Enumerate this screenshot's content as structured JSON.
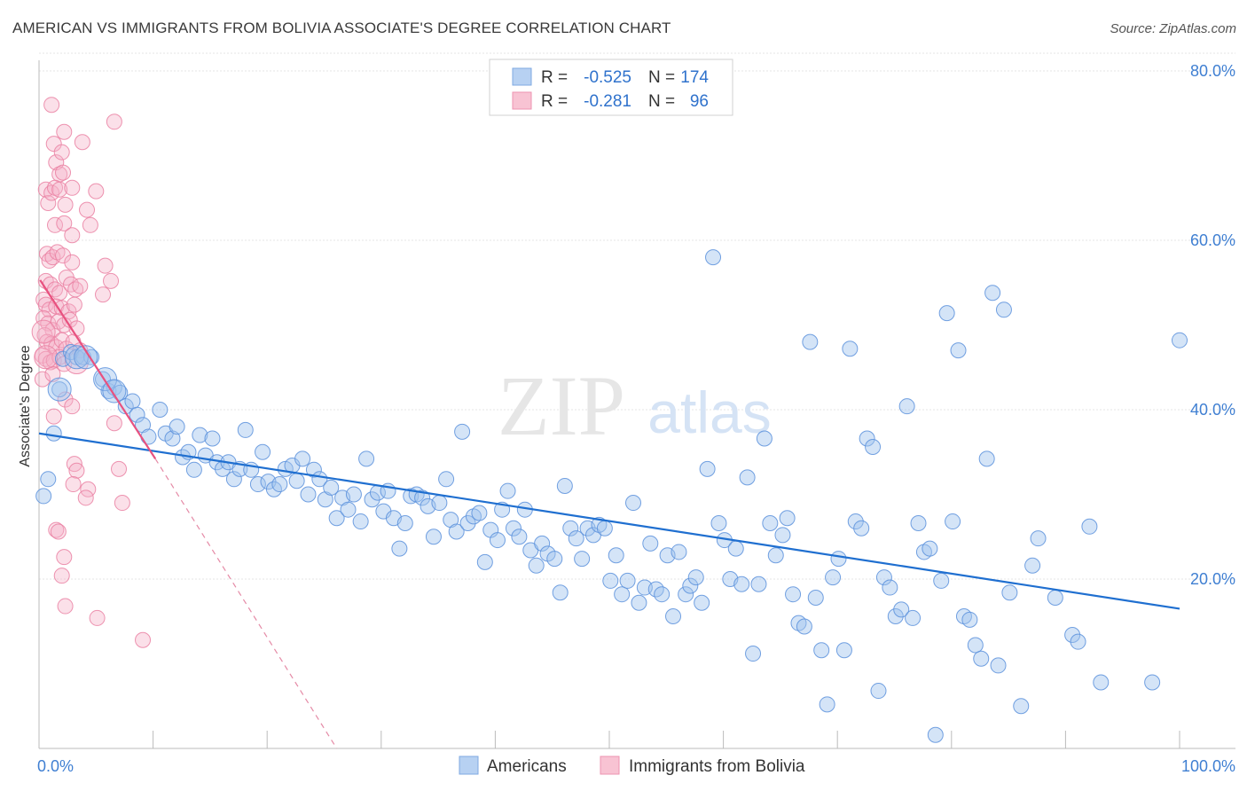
{
  "title": "AMERICAN VS IMMIGRANTS FROM BOLIVIA ASSOCIATE'S DEGREE CORRELATION CHART",
  "source": "Source: ZipAtlas.com",
  "watermark": {
    "zip": "ZIP",
    "atlas": "atlas"
  },
  "colors": {
    "blue": "#1f6fd0",
    "blue_fill": "#a9c8ef",
    "blue_stroke": "#6fa0e0",
    "pink": "#e8517f",
    "pink_fill": "#f6b4c8",
    "pink_stroke": "#ec8aa8",
    "tick_label": "#3f7fd2",
    "grid": "#e4e4e4"
  },
  "legend": {
    "rows": [
      {
        "r_label": "R =",
        "r_value": "-0.525",
        "n_label": "N =",
        "n_value": "174"
      },
      {
        "r_label": "R =",
        "r_value": "-0.281",
        "n_label": "N =",
        "n_value": "96"
      }
    ]
  },
  "chart_data": {
    "type": "scatter",
    "title": "AMERICAN VS IMMIGRANTS FROM BOLIVIA ASSOCIATE'S DEGREE CORRELATION CHART",
    "xlabel": "",
    "ylabel": "Associate's Degree",
    "xlim": [
      0,
      100
    ],
    "ylim": [
      0,
      82
    ],
    "x_tick_labels": [
      "0.0%",
      "100.0%"
    ],
    "y_ticks": [
      20,
      40,
      60,
      80
    ],
    "y_tick_labels": [
      "20.0%",
      "40.0%",
      "60.0%",
      "80.0%"
    ],
    "grid": true,
    "legend_position": "top-center",
    "series": [
      {
        "name": "Americans",
        "color": "#1f6fd0",
        "r": -0.525,
        "n": 174,
        "trend": {
          "x": [
            0,
            100
          ],
          "y": [
            37.2,
            16.5
          ],
          "dashed_extension": false
        },
        "points": [
          [
            0.4,
            29.8
          ],
          [
            0.8,
            31.8
          ],
          [
            1.3,
            37.2
          ],
          [
            1.8,
            42.4
          ],
          [
            2.1,
            46.0
          ],
          [
            2.8,
            46.8
          ],
          [
            3.3,
            46.2
          ],
          [
            3.9,
            46.2
          ],
          [
            4.6,
            46.2
          ],
          [
            5.6,
            43.6
          ],
          [
            6.1,
            42.2
          ],
          [
            6.6,
            42.6
          ],
          [
            7.1,
            42.0
          ],
          [
            7.6,
            40.4
          ],
          [
            8.2,
            41.0
          ],
          [
            8.6,
            39.4
          ],
          [
            9.1,
            38.2
          ],
          [
            9.6,
            36.8
          ],
          [
            10.6,
            40.0
          ],
          [
            11.1,
            37.2
          ],
          [
            11.7,
            36.6
          ],
          [
            12.1,
            38.0
          ],
          [
            12.6,
            34.4
          ],
          [
            13.1,
            35.0
          ],
          [
            13.6,
            32.9
          ],
          [
            14.1,
            37.0
          ],
          [
            14.6,
            34.6
          ],
          [
            15.2,
            36.6
          ],
          [
            15.6,
            33.8
          ],
          [
            16.1,
            33.0
          ],
          [
            16.6,
            33.8
          ],
          [
            17.1,
            31.8
          ],
          [
            17.6,
            33.0
          ],
          [
            18.1,
            37.6
          ],
          [
            18.6,
            32.9
          ],
          [
            19.2,
            31.2
          ],
          [
            19.6,
            35.0
          ],
          [
            20.1,
            31.5
          ],
          [
            20.6,
            30.6
          ],
          [
            21.1,
            31.2
          ],
          [
            21.6,
            33.0
          ],
          [
            22.2,
            33.4
          ],
          [
            22.6,
            31.6
          ],
          [
            23.1,
            34.2
          ],
          [
            23.6,
            30.0
          ],
          [
            24.1,
            32.9
          ],
          [
            24.6,
            31.8
          ],
          [
            25.1,
            29.4
          ],
          [
            25.6,
            30.8
          ],
          [
            26.1,
            27.2
          ],
          [
            26.6,
            29.6
          ],
          [
            27.1,
            28.2
          ],
          [
            27.6,
            30.0
          ],
          [
            28.2,
            26.8
          ],
          [
            28.7,
            34.2
          ],
          [
            29.2,
            29.4
          ],
          [
            29.7,
            30.2
          ],
          [
            30.2,
            28.0
          ],
          [
            30.6,
            30.4
          ],
          [
            31.1,
            27.2
          ],
          [
            31.6,
            23.6
          ],
          [
            32.1,
            26.6
          ],
          [
            32.6,
            29.8
          ],
          [
            33.1,
            30.0
          ],
          [
            33.6,
            29.6
          ],
          [
            34.1,
            28.6
          ],
          [
            34.6,
            25.0
          ],
          [
            35.1,
            29.0
          ],
          [
            35.7,
            31.8
          ],
          [
            36.1,
            27.0
          ],
          [
            36.6,
            25.6
          ],
          [
            37.1,
            37.4
          ],
          [
            37.6,
            26.6
          ],
          [
            38.1,
            27.4
          ],
          [
            38.6,
            27.8
          ],
          [
            39.1,
            22.0
          ],
          [
            39.6,
            25.8
          ],
          [
            40.2,
            24.6
          ],
          [
            40.6,
            28.2
          ],
          [
            41.1,
            30.4
          ],
          [
            41.6,
            26.0
          ],
          [
            42.1,
            25.0
          ],
          [
            42.6,
            28.2
          ],
          [
            43.1,
            23.4
          ],
          [
            43.6,
            21.6
          ],
          [
            44.1,
            24.2
          ],
          [
            44.6,
            23.0
          ],
          [
            45.2,
            22.4
          ],
          [
            45.7,
            18.4
          ],
          [
            46.1,
            31.0
          ],
          [
            46.6,
            26.0
          ],
          [
            47.1,
            24.8
          ],
          [
            47.6,
            22.4
          ],
          [
            48.1,
            26.0
          ],
          [
            48.6,
            25.2
          ],
          [
            49.1,
            26.4
          ],
          [
            49.6,
            26.0
          ],
          [
            50.1,
            19.8
          ],
          [
            50.6,
            22.8
          ],
          [
            51.1,
            18.2
          ],
          [
            51.6,
            19.8
          ],
          [
            52.1,
            29.0
          ],
          [
            52.6,
            17.2
          ],
          [
            53.1,
            19.0
          ],
          [
            53.6,
            24.2
          ],
          [
            54.1,
            18.8
          ],
          [
            54.6,
            18.2
          ],
          [
            55.1,
            22.8
          ],
          [
            55.6,
            15.6
          ],
          [
            56.1,
            23.2
          ],
          [
            56.7,
            18.2
          ],
          [
            57.1,
            19.2
          ],
          [
            57.6,
            20.2
          ],
          [
            58.1,
            17.2
          ],
          [
            58.6,
            33.0
          ],
          [
            59.1,
            58.0
          ],
          [
            59.6,
            26.6
          ],
          [
            60.1,
            24.6
          ],
          [
            60.6,
            20.0
          ],
          [
            61.1,
            23.6
          ],
          [
            61.6,
            19.4
          ],
          [
            62.1,
            32.0
          ],
          [
            62.6,
            11.2
          ],
          [
            63.1,
            19.4
          ],
          [
            63.6,
            36.6
          ],
          [
            64.1,
            26.6
          ],
          [
            64.6,
            22.8
          ],
          [
            65.2,
            25.2
          ],
          [
            65.6,
            27.2
          ],
          [
            66.1,
            18.2
          ],
          [
            66.6,
            14.8
          ],
          [
            67.1,
            14.4
          ],
          [
            67.6,
            48.0
          ],
          [
            68.1,
            17.8
          ],
          [
            68.6,
            11.6
          ],
          [
            69.1,
            5.2
          ],
          [
            69.6,
            20.2
          ],
          [
            70.1,
            22.4
          ],
          [
            70.6,
            11.6
          ],
          [
            71.1,
            47.2
          ],
          [
            71.6,
            26.8
          ],
          [
            72.1,
            26.0
          ],
          [
            72.6,
            36.6
          ],
          [
            73.1,
            35.6
          ],
          [
            73.6,
            6.8
          ],
          [
            74.1,
            20.2
          ],
          [
            74.6,
            19.0
          ],
          [
            75.1,
            15.6
          ],
          [
            75.6,
            16.4
          ],
          [
            76.1,
            40.4
          ],
          [
            76.6,
            15.4
          ],
          [
            77.1,
            26.6
          ],
          [
            77.6,
            23.2
          ],
          [
            78.1,
            23.6
          ],
          [
            78.6,
            1.6
          ],
          [
            79.1,
            19.8
          ],
          [
            79.6,
            51.4
          ],
          [
            80.1,
            26.8
          ],
          [
            80.6,
            47.0
          ],
          [
            81.1,
            15.6
          ],
          [
            81.6,
            15.2
          ],
          [
            82.1,
            12.2
          ],
          [
            82.6,
            10.6
          ],
          [
            83.1,
            34.2
          ],
          [
            83.6,
            53.8
          ],
          [
            84.1,
            9.8
          ],
          [
            84.6,
            51.8
          ],
          [
            85.1,
            18.4
          ],
          [
            86.1,
            5.0
          ],
          [
            87.1,
            21.6
          ],
          [
            87.6,
            24.8
          ],
          [
            89.1,
            17.8
          ],
          [
            90.6,
            13.4
          ],
          [
            91.1,
            12.6
          ],
          [
            92.1,
            26.2
          ],
          [
            93.1,
            7.8
          ],
          [
            97.6,
            7.8
          ],
          [
            100.0,
            48.2
          ]
        ],
        "big_points": [
          [
            1.8,
            42.4
          ],
          [
            3.3,
            46.2
          ],
          [
            4.1,
            46.2
          ],
          [
            5.8,
            43.6
          ],
          [
            6.6,
            42.2
          ]
        ]
      },
      {
        "name": "Immigrants from Bolivia",
        "color": "#e8517f",
        "r": -0.281,
        "n": 96,
        "trend": {
          "x": [
            0.1,
            10.2
          ],
          "y": [
            55.3,
            34.2
          ],
          "dashed_to": [
            26.1,
            0
          ]
        },
        "points": [
          [
            1.1,
            76.0
          ],
          [
            1.3,
            71.4
          ],
          [
            1.5,
            69.2
          ],
          [
            2.2,
            72.8
          ],
          [
            3.8,
            71.6
          ],
          [
            2.0,
            70.4
          ],
          [
            1.8,
            67.8
          ],
          [
            2.1,
            68.0
          ],
          [
            6.6,
            74.0
          ],
          [
            0.6,
            66.0
          ],
          [
            0.8,
            64.4
          ],
          [
            1.1,
            65.6
          ],
          [
            1.4,
            66.2
          ],
          [
            1.8,
            66.0
          ],
          [
            2.3,
            64.2
          ],
          [
            2.9,
            66.2
          ],
          [
            5.0,
            65.8
          ],
          [
            4.2,
            63.6
          ],
          [
            1.4,
            61.8
          ],
          [
            2.2,
            62.0
          ],
          [
            2.9,
            60.6
          ],
          [
            4.5,
            61.8
          ],
          [
            0.7,
            58.4
          ],
          [
            0.9,
            57.6
          ],
          [
            1.2,
            58.0
          ],
          [
            1.6,
            58.6
          ],
          [
            2.1,
            58.2
          ],
          [
            2.9,
            57.4
          ],
          [
            5.8,
            57.0
          ],
          [
            0.6,
            55.2
          ],
          [
            1.0,
            54.8
          ],
          [
            1.4,
            54.2
          ],
          [
            1.8,
            53.8
          ],
          [
            2.4,
            55.6
          ],
          [
            2.8,
            54.8
          ],
          [
            3.2,
            54.2
          ],
          [
            3.6,
            54.6
          ],
          [
            6.3,
            55.2
          ],
          [
            0.4,
            53.0
          ],
          [
            0.6,
            52.4
          ],
          [
            0.9,
            51.8
          ],
          [
            1.5,
            52.2
          ],
          [
            2.0,
            52.0
          ],
          [
            2.6,
            51.6
          ],
          [
            3.1,
            52.4
          ],
          [
            5.6,
            53.6
          ],
          [
            0.4,
            50.8
          ],
          [
            0.8,
            50.2
          ],
          [
            1.2,
            49.4
          ],
          [
            1.7,
            50.4
          ],
          [
            2.2,
            50.0
          ],
          [
            2.7,
            50.6
          ],
          [
            3.3,
            49.6
          ],
          [
            0.5,
            48.8
          ],
          [
            0.7,
            48.0
          ],
          [
            1.1,
            47.8
          ],
          [
            1.5,
            47.4
          ],
          [
            2.0,
            48.2
          ],
          [
            2.4,
            47.2
          ],
          [
            3.0,
            48.0
          ],
          [
            3.6,
            47.0
          ],
          [
            0.3,
            46.4
          ],
          [
            0.6,
            46.0
          ],
          [
            1.0,
            45.6
          ],
          [
            1.3,
            45.8
          ],
          [
            1.8,
            46.2
          ],
          [
            2.2,
            45.4
          ],
          [
            0.3,
            43.6
          ],
          [
            1.2,
            44.2
          ],
          [
            2.3,
            41.2
          ],
          [
            2.9,
            40.4
          ],
          [
            6.6,
            38.4
          ],
          [
            1.3,
            39.2
          ],
          [
            3.1,
            33.6
          ],
          [
            3.3,
            32.8
          ],
          [
            3.0,
            31.2
          ],
          [
            4.3,
            30.6
          ],
          [
            4.1,
            29.6
          ],
          [
            7.0,
            33.0
          ],
          [
            7.3,
            29.0
          ],
          [
            1.5,
            25.8
          ],
          [
            1.7,
            25.6
          ],
          [
            2.2,
            22.6
          ],
          [
            2.0,
            20.4
          ],
          [
            2.3,
            16.8
          ],
          [
            5.1,
            15.4
          ],
          [
            9.1,
            12.8
          ]
        ],
        "big_points": [
          [
            0.4,
            49.2
          ],
          [
            0.6,
            46.2
          ],
          [
            3.3,
            45.6
          ]
        ]
      }
    ]
  },
  "legend_bottom": [
    {
      "label": "Americans"
    },
    {
      "label": "Immigrants from Bolivia"
    }
  ]
}
